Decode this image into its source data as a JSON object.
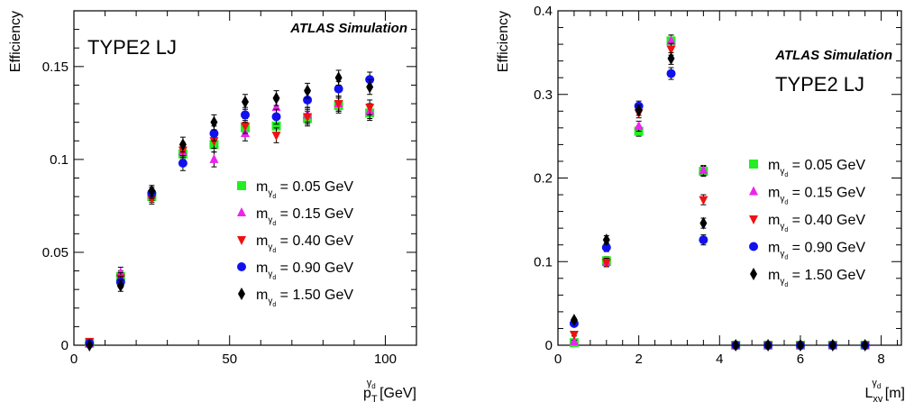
{
  "chart_data": [
    {
      "type": "scatter",
      "title": "",
      "panel_label": "TYPE2 LJ",
      "watermark": "ATLAS Simulation",
      "ylabel": "Efficiency",
      "xlabel": {
        "main": "p",
        "sub": "T",
        "sup": "γ",
        "supsub": "d",
        "unit": " [GeV]"
      },
      "xlim": [
        0,
        110
      ],
      "ylim": [
        0,
        0.18
      ],
      "xticks": [
        {
          "v": 0,
          "label": "0"
        },
        {
          "v": 50,
          "label": "50"
        },
        {
          "v": 100,
          "label": "100"
        }
      ],
      "yticks": [
        {
          "v": 0,
          "label": "0"
        },
        {
          "v": 0.05,
          "label": "0.05"
        },
        {
          "v": 0.1,
          "label": "0.1"
        },
        {
          "v": 0.15,
          "label": "0.15"
        }
      ],
      "legend_position": "center-right",
      "x": [
        5,
        15,
        25,
        35,
        45,
        55,
        65,
        75,
        85,
        95
      ],
      "series": [
        {
          "name": "0.05",
          "marker": "square",
          "color": "#22ee22",
          "values": [
            0.001,
            0.037,
            0.08,
            0.103,
            0.108,
            0.117,
            0.118,
            0.122,
            0.129,
            0.125
          ],
          "errors": [
            0.001,
            0.003,
            0.003,
            0.004,
            0.004,
            0.004,
            0.004,
            0.004,
            0.004,
            0.004
          ]
        },
        {
          "name": "0.15",
          "marker": "triangle-up",
          "color": "#ee22ee",
          "values": [
            0.001,
            0.039,
            0.081,
            0.104,
            0.1,
            0.114,
            0.128,
            0.124,
            0.13,
            0.126
          ],
          "errors": [
            0.001,
            0.003,
            0.003,
            0.004,
            0.004,
            0.004,
            0.004,
            0.004,
            0.004,
            0.004
          ]
        },
        {
          "name": "0.40",
          "marker": "triangle-down",
          "color": "#ee1111",
          "values": [
            0.002,
            0.036,
            0.079,
            0.105,
            0.11,
            0.118,
            0.113,
            0.123,
            0.13,
            0.128
          ],
          "errors": [
            0.001,
            0.003,
            0.003,
            0.004,
            0.004,
            0.004,
            0.004,
            0.004,
            0.004,
            0.004
          ]
        },
        {
          "name": "0.90",
          "marker": "circle",
          "color": "#1111ee",
          "values": [
            0.001,
            0.034,
            0.082,
            0.098,
            0.114,
            0.124,
            0.123,
            0.132,
            0.138,
            0.143
          ],
          "errors": [
            0.001,
            0.003,
            0.003,
            0.004,
            0.004,
            0.004,
            0.004,
            0.004,
            0.004,
            0.004
          ]
        },
        {
          "name": "1.50",
          "marker": "diamond",
          "color": "#000000",
          "values": [
            0.0,
            0.032,
            0.083,
            0.108,
            0.12,
            0.131,
            0.133,
            0.137,
            0.144,
            0.139
          ],
          "errors": [
            0.001,
            0.003,
            0.003,
            0.004,
            0.004,
            0.004,
            0.004,
            0.004,
            0.004,
            0.004
          ]
        }
      ]
    },
    {
      "type": "scatter",
      "title": "",
      "panel_label": "TYPE2 LJ",
      "watermark": "ATLAS Simulation",
      "ylabel": "Efficiency",
      "xlabel": {
        "main": "L",
        "sub": "xy",
        "sup": "γ",
        "supsub": "d",
        "unit": " [m]"
      },
      "xlim": [
        0,
        8.5
      ],
      "ylim": [
        0,
        0.4
      ],
      "xticks": [
        {
          "v": 0,
          "label": "0"
        },
        {
          "v": 2,
          "label": "2"
        },
        {
          "v": 4,
          "label": "4"
        },
        {
          "v": 6,
          "label": "6"
        },
        {
          "v": 8,
          "label": "8"
        }
      ],
      "yticks": [
        {
          "v": 0,
          "label": "0"
        },
        {
          "v": 0.1,
          "label": "0.1"
        },
        {
          "v": 0.2,
          "label": "0.2"
        },
        {
          "v": 0.3,
          "label": "0.3"
        },
        {
          "v": 0.4,
          "label": "0.4"
        }
      ],
      "legend_position": "center-right",
      "x": [
        0.4,
        1.2,
        2.0,
        2.8,
        3.6,
        4.4,
        5.2,
        6.0,
        6.8,
        7.6
      ],
      "series": [
        {
          "name": "0.05",
          "marker": "square",
          "color": "#22ee22",
          "values": [
            0.003,
            0.101,
            0.256,
            0.364,
            0.208,
            0.0,
            0.0,
            0.0,
            0.0,
            0.0
          ],
          "errors": [
            0.002,
            0.005,
            0.006,
            0.007,
            0.006,
            0.001,
            0.001,
            0.001,
            0.001,
            0.001
          ]
        },
        {
          "name": "0.15",
          "marker": "triangle-up",
          "color": "#ee22ee",
          "values": [
            0.004,
            0.099,
            0.262,
            0.364,
            0.209,
            0.0,
            0.0,
            0.0,
            0.0,
            0.0
          ],
          "errors": [
            0.002,
            0.005,
            0.006,
            0.007,
            0.006,
            0.001,
            0.001,
            0.001,
            0.001,
            0.001
          ]
        },
        {
          "name": "0.40",
          "marker": "triangle-down",
          "color": "#ee1111",
          "values": [
            0.013,
            0.099,
            0.278,
            0.354,
            0.174,
            0.0,
            0.0,
            0.0,
            0.0,
            0.0
          ],
          "errors": [
            0.002,
            0.005,
            0.006,
            0.007,
            0.006,
            0.001,
            0.001,
            0.001,
            0.001,
            0.001
          ]
        },
        {
          "name": "0.90",
          "marker": "circle",
          "color": "#1111ee",
          "values": [
            0.026,
            0.117,
            0.286,
            0.325,
            0.126,
            0.0,
            0.0,
            0.0,
            0.0,
            0.0
          ],
          "errors": [
            0.002,
            0.005,
            0.006,
            0.007,
            0.006,
            0.001,
            0.001,
            0.001,
            0.001,
            0.001
          ]
        },
        {
          "name": "1.50",
          "marker": "diamond",
          "color": "#000000",
          "values": [
            0.03,
            0.126,
            0.281,
            0.343,
            0.146,
            0.0,
            0.0,
            0.0,
            0.0,
            0.0
          ],
          "errors": [
            0.002,
            0.005,
            0.006,
            0.007,
            0.006,
            0.001,
            0.001,
            0.001,
            0.001,
            0.001
          ]
        }
      ]
    }
  ],
  "legend": {
    "prefix": "m",
    "sub": "γ",
    "subsub": "d",
    "suffix": " GeV",
    "equals": " = "
  }
}
